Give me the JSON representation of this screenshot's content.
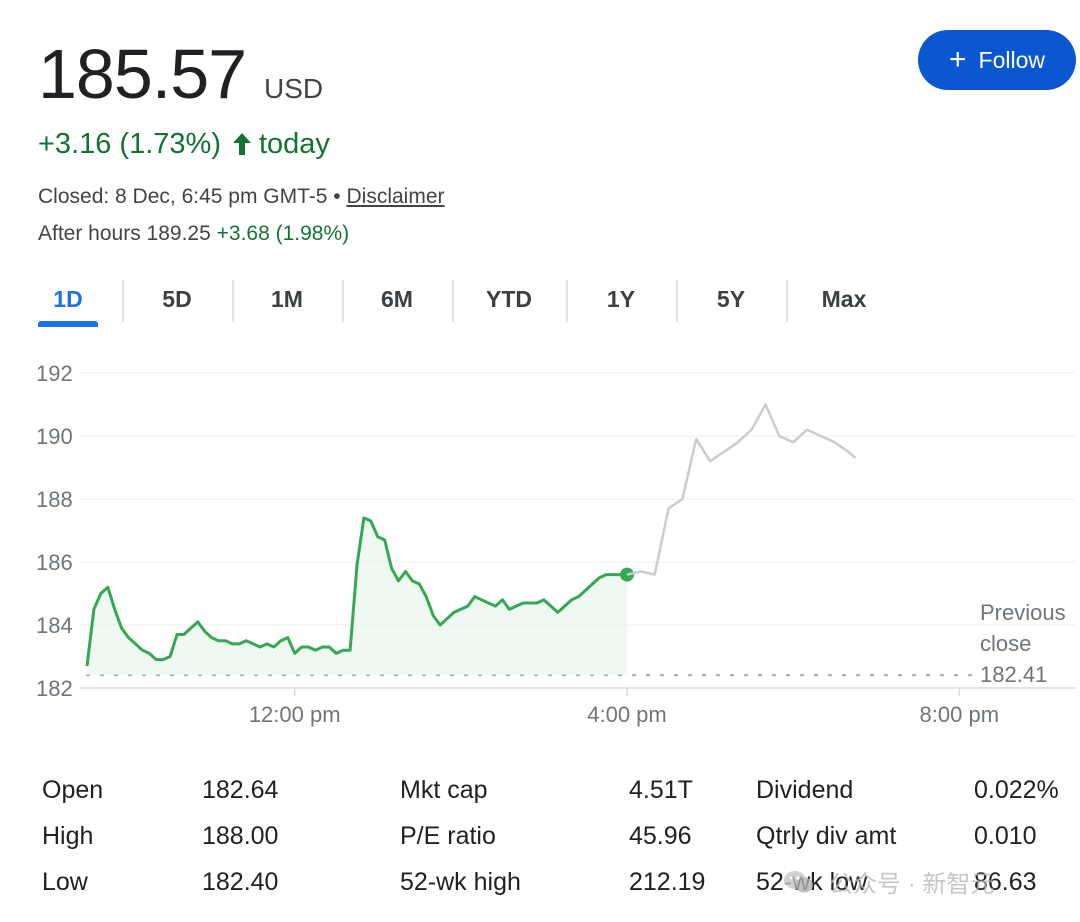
{
  "quote": {
    "price": "185.57",
    "currency": "USD",
    "change_text": "+3.16 (1.73%)",
    "change_suffix": "today",
    "closed_prefix": "Closed: 8 Dec, 6:45 pm GMT-5 •",
    "disclaimer": "Disclaimer",
    "after_hours_label": "After hours 189.25",
    "after_hours_change": "+3.68 (1.98%)"
  },
  "follow": {
    "label": "Follow",
    "icon": "plus-icon"
  },
  "tabs": [
    {
      "label": "1D",
      "active": true
    },
    {
      "label": "5D"
    },
    {
      "label": "1M"
    },
    {
      "label": "6M"
    },
    {
      "label": "YTD"
    },
    {
      "label": "1Y"
    },
    {
      "label": "5Y"
    },
    {
      "label": "Max"
    }
  ],
  "chart_data": {
    "type": "line",
    "y_ticks": [
      "192",
      "190",
      "188",
      "186",
      "184",
      "182"
    ],
    "ylim": [
      182,
      192
    ],
    "x_ticks": [
      "12:00 pm",
      "4:00 pm",
      "8:00 pm"
    ],
    "grid": true,
    "previous_close": {
      "label_lines": [
        "Previous",
        "close"
      ],
      "value": 182.41,
      "value_label": "182.41"
    },
    "colors": {
      "regular": "#34a853",
      "after_hours": "#cccccc",
      "grid": "#eeeeee",
      "dots": "#9e9e9e"
    },
    "series": [
      {
        "session": "regular",
        "x": [
          "9:30",
          "9:35",
          "9:40",
          "9:45",
          "9:50",
          "9:55",
          "10:00",
          "10:05",
          "10:10",
          "10:15",
          "10:20",
          "10:25",
          "10:30",
          "10:35",
          "10:40",
          "10:45",
          "10:50",
          "10:55",
          "11:00",
          "11:05",
          "11:10",
          "11:15",
          "11:20",
          "11:25",
          "11:30",
          "11:35",
          "11:40",
          "11:45",
          "11:50",
          "11:55",
          "12:00",
          "12:05",
          "12:10",
          "12:15",
          "12:20",
          "12:25",
          "12:30",
          "12:35",
          "12:40",
          "12:45",
          "12:50",
          "12:55",
          "13:00",
          "13:05",
          "13:10",
          "13:15",
          "13:20",
          "13:25",
          "13:30",
          "13:35",
          "13:40",
          "13:45",
          "13:50",
          "13:55",
          "14:00",
          "14:05",
          "14:10",
          "14:15",
          "14:20",
          "14:25",
          "14:30",
          "14:35",
          "14:40",
          "14:45",
          "14:50",
          "14:55",
          "15:00",
          "15:05",
          "15:10",
          "15:15",
          "15:20",
          "15:25",
          "15:30",
          "15:35",
          "15:40",
          "15:45",
          "15:50",
          "15:55",
          "16:00"
        ],
        "values": [
          182.7,
          184.5,
          185.0,
          185.2,
          184.5,
          183.9,
          183.6,
          183.4,
          183.2,
          183.1,
          182.9,
          182.9,
          183.0,
          183.7,
          183.7,
          183.9,
          184.1,
          183.8,
          183.6,
          183.5,
          183.5,
          183.4,
          183.4,
          183.5,
          183.4,
          183.3,
          183.4,
          183.3,
          183.5,
          183.6,
          183.1,
          183.3,
          183.3,
          183.2,
          183.3,
          183.3,
          183.1,
          183.2,
          183.2,
          185.9,
          187.4,
          187.3,
          186.8,
          186.7,
          185.8,
          185.4,
          185.7,
          185.4,
          185.3,
          184.9,
          184.3,
          184.0,
          184.2,
          184.4,
          184.5,
          184.6,
          184.9,
          184.8,
          184.7,
          184.6,
          184.8,
          184.5,
          184.6,
          184.7,
          184.7,
          184.7,
          184.8,
          184.6,
          184.4,
          184.6,
          184.8,
          184.9,
          185.1,
          185.3,
          185.5,
          185.6,
          185.6,
          185.6,
          185.6
        ]
      },
      {
        "session": "after_hours",
        "x": [
          "16:00",
          "16:10",
          "16:20",
          "16:30",
          "16:40",
          "16:50",
          "17:00",
          "17:10",
          "17:20",
          "17:30",
          "17:40",
          "17:50",
          "18:00",
          "18:10",
          "18:20",
          "18:30",
          "18:40",
          "18:45"
        ],
        "values": [
          185.6,
          185.7,
          185.6,
          187.7,
          188.0,
          189.9,
          189.2,
          189.5,
          189.8,
          190.2,
          191.0,
          190.0,
          189.8,
          190.2,
          190.0,
          189.8,
          189.5,
          189.3
        ]
      }
    ]
  },
  "stats": {
    "col1": [
      {
        "label": "Open",
        "value": "182.64"
      },
      {
        "label": "High",
        "value": "188.00"
      },
      {
        "label": "Low",
        "value": "182.40"
      }
    ],
    "col2": [
      {
        "label": "Mkt cap",
        "value": "4.51T"
      },
      {
        "label": "P/E ratio",
        "value": "45.96"
      },
      {
        "label": "52-wk high",
        "value": "212.19"
      }
    ],
    "col3": [
      {
        "label": "Dividend",
        "value": "0.022%"
      },
      {
        "label": "Qtrly div amt",
        "value": "0.010"
      },
      {
        "label": "52-wk low",
        "value": "86.63"
      }
    ]
  },
  "watermark": {
    "text": "公众号 · 新智元",
    "icon": "wechat-icon"
  }
}
